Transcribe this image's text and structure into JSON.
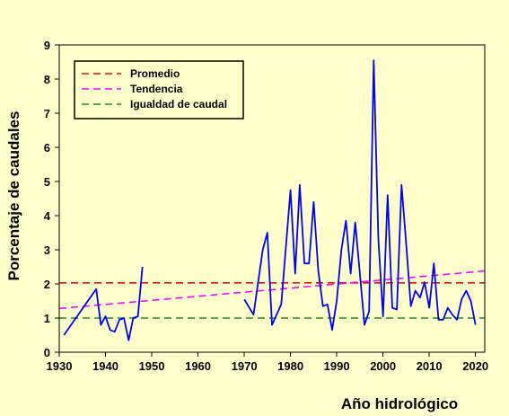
{
  "chart_data": {
    "type": "line",
    "xlabel": "Año hidrológico",
    "ylabel": "Porcentaje de caudales",
    "xlim": [
      1930,
      2022
    ],
    "ylim": [
      0,
      9
    ],
    "xticks": [
      1930,
      1940,
      1950,
      1960,
      1970,
      1980,
      1990,
      2000,
      2010,
      2020
    ],
    "yticks": [
      0,
      1,
      2,
      3,
      4,
      5,
      6,
      7,
      8,
      9
    ],
    "grid": false,
    "legend_position": "top-left",
    "series": [
      {
        "name": "",
        "color": "#0000ff",
        "segments": [
          [
            [
              1931,
              0.5
            ],
            [
              1938,
              1.85
            ],
            [
              1939,
              0.8
            ],
            [
              1940,
              1.05
            ],
            [
              1941,
              0.65
            ],
            [
              1942,
              0.6
            ],
            [
              1943,
              0.95
            ],
            [
              1944,
              1.0
            ],
            [
              1945,
              0.35
            ],
            [
              1946,
              1.0
            ],
            [
              1947,
              1.05
            ],
            [
              1948,
              2.5
            ]
          ],
          [
            [
              1970,
              1.55
            ],
            [
              1972,
              1.1
            ],
            [
              1974,
              3.0
            ],
            [
              1975,
              3.5
            ],
            [
              1976,
              0.8
            ],
            [
              1978,
              1.4
            ],
            [
              1980,
              4.75
            ],
            [
              1981,
              2.3
            ],
            [
              1982,
              4.9
            ],
            [
              1983,
              2.6
            ],
            [
              1984,
              2.6
            ],
            [
              1985,
              4.4
            ],
            [
              1986,
              2.4
            ],
            [
              1987,
              1.35
            ],
            [
              1988,
              1.4
            ],
            [
              1989,
              0.65
            ],
            [
              1990,
              1.5
            ],
            [
              1991,
              3.0
            ],
            [
              1992,
              3.85
            ],
            [
              1993,
              2.3
            ],
            [
              1994,
              3.8
            ],
            [
              1995,
              2.3
            ],
            [
              1996,
              0.8
            ],
            [
              1997,
              1.2
            ],
            [
              1998,
              8.55
            ],
            [
              1999,
              3.3
            ],
            [
              2000,
              1.05
            ],
            [
              2001,
              4.6
            ],
            [
              2002,
              1.3
            ],
            [
              2003,
              1.25
            ],
            [
              2004,
              4.9
            ],
            [
              2005,
              3.2
            ],
            [
              2006,
              1.35
            ],
            [
              2007,
              1.8
            ],
            [
              2008,
              1.6
            ],
            [
              2009,
              2.05
            ],
            [
              2010,
              1.3
            ],
            [
              2011,
              2.6
            ],
            [
              2012,
              0.95
            ],
            [
              2013,
              0.95
            ],
            [
              2014,
              1.3
            ],
            [
              2015,
              1.1
            ],
            [
              2016,
              0.95
            ],
            [
              2017,
              1.55
            ],
            [
              2018,
              1.8
            ],
            [
              2019,
              1.5
            ],
            [
              2020,
              0.8
            ]
          ]
        ]
      }
    ],
    "reference_lines": [
      {
        "name": "Promedio",
        "color": "#dd1111",
        "dash": "dashed",
        "y": [
          2.03,
          2.03
        ]
      },
      {
        "name": "Tendencia",
        "color": "#ff00ff",
        "dash": "dashed",
        "y": [
          1.28,
          2.38
        ]
      },
      {
        "name": "Igualdad de caudal",
        "color": "#119911",
        "dash": "dashed",
        "y": [
          1.0,
          1.0
        ]
      }
    ]
  }
}
